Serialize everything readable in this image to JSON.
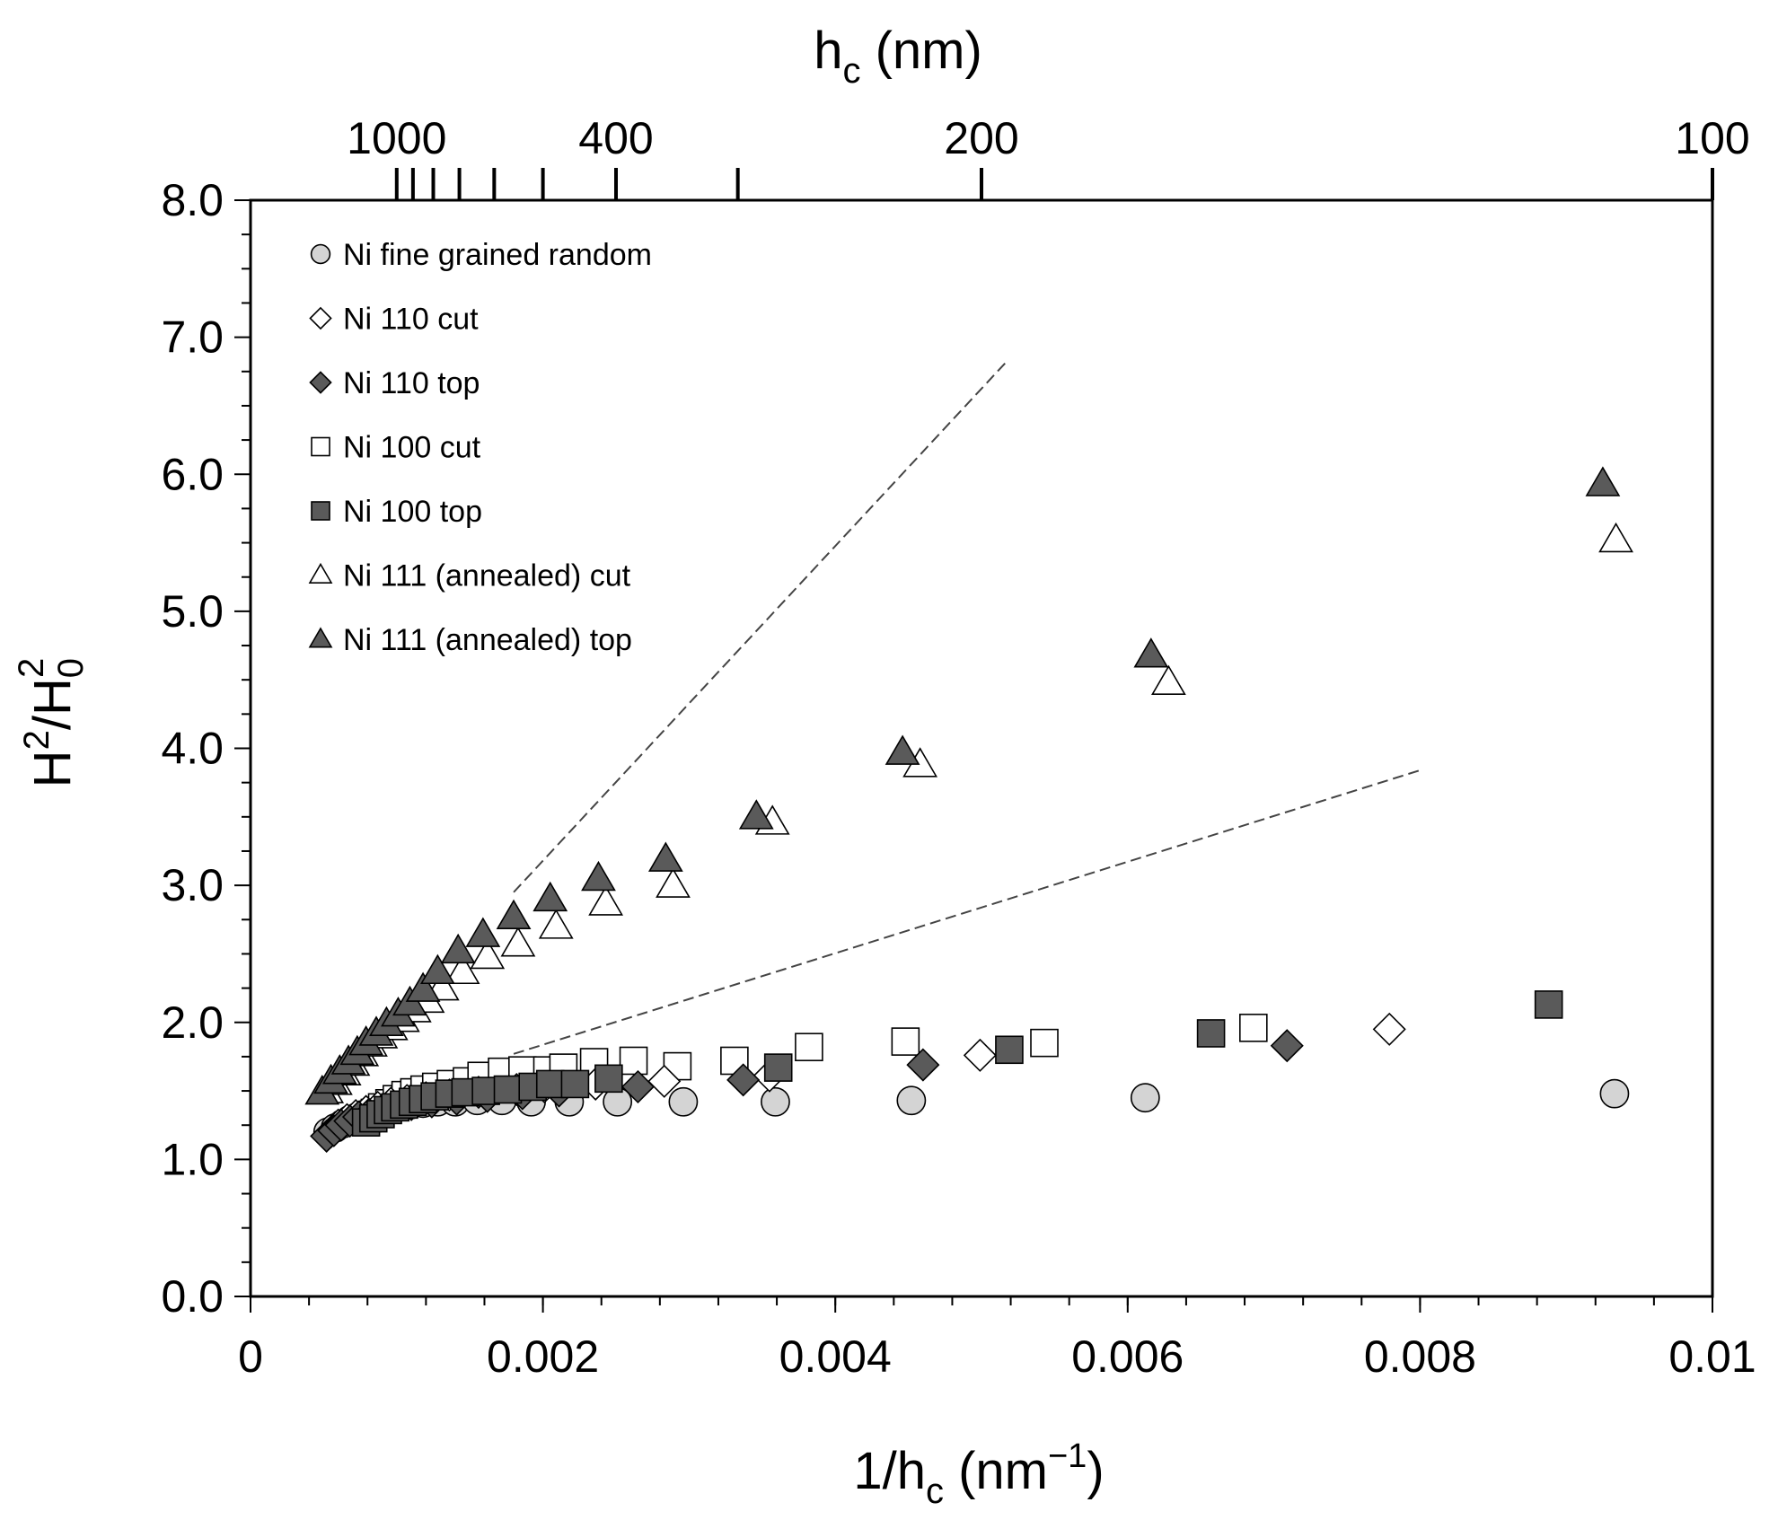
{
  "chart_data": {
    "type": "scatter",
    "title": "",
    "xlabel": {
      "main": "1/h",
      "sub": "c",
      "unit_open": " (nm",
      "sup": "−1",
      "unit_close": ")"
    },
    "ylabel": {
      "a": "H",
      "sup1": "2",
      "b": "/H",
      "sub": "0",
      "sup2": "2"
    },
    "top_xlabel": {
      "main": "h",
      "sub": "c",
      "unit": " (nm)"
    },
    "xlim": [
      0,
      0.01
    ],
    "ylim": [
      0,
      8
    ],
    "grid": false,
    "legend_position": "top-left",
    "x_ticks": [
      {
        "v": 0,
        "label": "0"
      },
      {
        "v": 0.002,
        "label": "0.002"
      },
      {
        "v": 0.004,
        "label": "0.004"
      },
      {
        "v": 0.006,
        "label": "0.006"
      },
      {
        "v": 0.008,
        "label": "0.008"
      },
      {
        "v": 0.01,
        "label": "0.01"
      }
    ],
    "x_minor_step": 0.0004,
    "y_ticks": [
      {
        "v": 0,
        "label": "0.0"
      },
      {
        "v": 1,
        "label": "1.0"
      },
      {
        "v": 2,
        "label": "2.0"
      },
      {
        "v": 3,
        "label": "3.0"
      },
      {
        "v": 4,
        "label": "4.0"
      },
      {
        "v": 5,
        "label": "5.0"
      },
      {
        "v": 6,
        "label": "6.0"
      },
      {
        "v": 7,
        "label": "7.0"
      },
      {
        "v": 8,
        "label": "8.0"
      }
    ],
    "y_minor_step": 0.25,
    "top_ticks": [
      {
        "h": 1000,
        "label": "1000"
      },
      {
        "h": 900,
        "label": ""
      },
      {
        "h": 800,
        "label": ""
      },
      {
        "h": 700,
        "label": ""
      },
      {
        "h": 600,
        "label": ""
      },
      {
        "h": 500,
        "label": ""
      },
      {
        "h": 400,
        "label": "400"
      },
      {
        "h": 300,
        "label": ""
      },
      {
        "h": 200,
        "label": "200"
      },
      {
        "h": 100,
        "label": "100"
      }
    ],
    "series": [
      {
        "name": "Ni fine grained random",
        "marker": "circle",
        "fill": "#d4d4d4",
        "points": [
          [
            0.00053,
            1.2
          ],
          [
            0.00058,
            1.23
          ],
          [
            0.00063,
            1.26
          ],
          [
            0.00068,
            1.29
          ],
          [
            0.00073,
            1.31
          ],
          [
            0.00078,
            1.33
          ],
          [
            0.00083,
            1.35
          ],
          [
            0.00088,
            1.36
          ],
          [
            0.00093,
            1.37
          ],
          [
            0.00098,
            1.38
          ],
          [
            0.00103,
            1.39
          ],
          [
            0.0011,
            1.4
          ],
          [
            0.00118,
            1.41
          ],
          [
            0.00128,
            1.42
          ],
          [
            0.0014,
            1.42
          ],
          [
            0.00155,
            1.43
          ],
          [
            0.00172,
            1.43
          ],
          [
            0.00192,
            1.42
          ],
          [
            0.00218,
            1.42
          ],
          [
            0.00251,
            1.42
          ],
          [
            0.00296,
            1.42
          ],
          [
            0.00359,
            1.42
          ],
          [
            0.00452,
            1.43
          ],
          [
            0.00612,
            1.45
          ],
          [
            0.00933,
            1.48
          ]
        ]
      },
      {
        "name": "Ni 110 cut",
        "marker": "diamond",
        "fill": "#ffffff",
        "points": [
          [
            0.00055,
            1.2
          ],
          [
            0.0006,
            1.25
          ],
          [
            0.00066,
            1.29
          ],
          [
            0.00072,
            1.32
          ],
          [
            0.00079,
            1.35
          ],
          [
            0.00087,
            1.38
          ],
          [
            0.00096,
            1.41
          ],
          [
            0.00107,
            1.43
          ],
          [
            0.0012,
            1.45
          ],
          [
            0.00136,
            1.47
          ],
          [
            0.00156,
            1.49
          ],
          [
            0.00182,
            1.51
          ],
          [
            0.00201,
            1.53
          ],
          [
            0.00236,
            1.55
          ],
          [
            0.00283,
            1.57
          ],
          [
            0.00355,
            1.61
          ],
          [
            0.00499,
            1.76
          ],
          [
            0.00779,
            1.95
          ]
        ]
      },
      {
        "name": "Ni 110 top",
        "marker": "diamond",
        "fill": "#5a5a5a",
        "points": [
          [
            0.00052,
            1.17
          ],
          [
            0.00057,
            1.21
          ],
          [
            0.00062,
            1.25
          ],
          [
            0.00068,
            1.28
          ],
          [
            0.00074,
            1.31
          ],
          [
            0.00081,
            1.33
          ],
          [
            0.00089,
            1.35
          ],
          [
            0.00099,
            1.38
          ],
          [
            0.0011,
            1.4
          ],
          [
            0.00124,
            1.42
          ],
          [
            0.00141,
            1.44
          ],
          [
            0.00162,
            1.46
          ],
          [
            0.00186,
            1.48
          ],
          [
            0.00211,
            1.5
          ],
          [
            0.00265,
            1.53
          ],
          [
            0.00337,
            1.58
          ],
          [
            0.0046,
            1.69
          ],
          [
            0.00709,
            1.83
          ]
        ]
      },
      {
        "name": "Ni 100 cut",
        "marker": "square",
        "fill": "#ffffff",
        "points": [
          [
            0.0008,
            1.3
          ],
          [
            0.00085,
            1.34
          ],
          [
            0.0009,
            1.38
          ],
          [
            0.00095,
            1.41
          ],
          [
            0.001,
            1.44
          ],
          [
            0.00106,
            1.47
          ],
          [
            0.00112,
            1.49
          ],
          [
            0.00119,
            1.51
          ],
          [
            0.00127,
            1.53
          ],
          [
            0.00137,
            1.55
          ],
          [
            0.00148,
            1.57
          ],
          [
            0.00158,
            1.61
          ],
          [
            0.00172,
            1.64
          ],
          [
            0.00186,
            1.65
          ],
          [
            0.00203,
            1.65
          ],
          [
            0.00214,
            1.67
          ],
          [
            0.00235,
            1.71
          ],
          [
            0.00262,
            1.72
          ],
          [
            0.00292,
            1.68
          ],
          [
            0.00331,
            1.72
          ],
          [
            0.00382,
            1.82
          ],
          [
            0.00448,
            1.86
          ],
          [
            0.00543,
            1.85
          ],
          [
            0.00686,
            1.96
          ]
        ]
      },
      {
        "name": "Ni 100 top",
        "marker": "square",
        "fill": "#5a5a5a",
        "points": [
          [
            0.00079,
            1.27
          ],
          [
            0.00084,
            1.3
          ],
          [
            0.00089,
            1.33
          ],
          [
            0.00094,
            1.36
          ],
          [
            0.00099,
            1.38
          ],
          [
            0.00105,
            1.4
          ],
          [
            0.00111,
            1.42
          ],
          [
            0.00118,
            1.44
          ],
          [
            0.00126,
            1.46
          ],
          [
            0.00136,
            1.48
          ],
          [
            0.00147,
            1.49
          ],
          [
            0.00161,
            1.5
          ],
          [
            0.00176,
            1.51
          ],
          [
            0.00193,
            1.53
          ],
          [
            0.00205,
            1.55
          ],
          [
            0.00222,
            1.55
          ],
          [
            0.00245,
            1.59
          ],
          [
            0.00361,
            1.67
          ],
          [
            0.00519,
            1.8
          ],
          [
            0.00657,
            1.92
          ],
          [
            0.00888,
            2.13
          ]
        ]
      },
      {
        "name": "Ni 111 (annealed) cut",
        "marker": "triangle",
        "fill": "#ffffff",
        "points": [
          [
            0.00052,
            1.5
          ],
          [
            0.00058,
            1.56
          ],
          [
            0.00064,
            1.63
          ],
          [
            0.0007,
            1.7
          ],
          [
            0.00076,
            1.77
          ],
          [
            0.00082,
            1.84
          ],
          [
            0.00089,
            1.9
          ],
          [
            0.00096,
            1.96
          ],
          [
            0.00104,
            2.02
          ],
          [
            0.00112,
            2.09
          ],
          [
            0.00121,
            2.16
          ],
          [
            0.00131,
            2.25
          ],
          [
            0.00145,
            2.37
          ],
          [
            0.00162,
            2.48
          ],
          [
            0.00183,
            2.57
          ],
          [
            0.00209,
            2.7
          ],
          [
            0.00243,
            2.87
          ],
          [
            0.00289,
            3.0
          ],
          [
            0.00357,
            3.46
          ],
          [
            0.00458,
            3.88
          ],
          [
            0.00628,
            4.48
          ],
          [
            0.00934,
            5.52
          ]
        ]
      },
      {
        "name": "Ni 111 (annealed) top",
        "marker": "triangle",
        "fill": "#5a5a5a",
        "points": [
          [
            0.00049,
            1.49
          ],
          [
            0.00055,
            1.57
          ],
          [
            0.00061,
            1.64
          ],
          [
            0.00067,
            1.71
          ],
          [
            0.00073,
            1.78
          ],
          [
            0.00079,
            1.85
          ],
          [
            0.00086,
            1.92
          ],
          [
            0.00093,
            1.99
          ],
          [
            0.00101,
            2.06
          ],
          [
            0.00109,
            2.14
          ],
          [
            0.00118,
            2.24
          ],
          [
            0.00128,
            2.37
          ],
          [
            0.00142,
            2.52
          ],
          [
            0.00159,
            2.64
          ],
          [
            0.0018,
            2.77
          ],
          [
            0.00205,
            2.9
          ],
          [
            0.00238,
            3.05
          ],
          [
            0.00284,
            3.19
          ],
          [
            0.00346,
            3.5
          ],
          [
            0.00446,
            3.97
          ],
          [
            0.00616,
            4.68
          ],
          [
            0.00925,
            5.93
          ]
        ]
      }
    ],
    "fit_lines": [
      {
        "from": [
          0.0018,
          2.95
        ],
        "to": [
          0.00517,
          6.82
        ]
      },
      {
        "from": [
          0.0018,
          1.77
        ],
        "to": [
          0.008,
          3.84
        ]
      }
    ]
  }
}
